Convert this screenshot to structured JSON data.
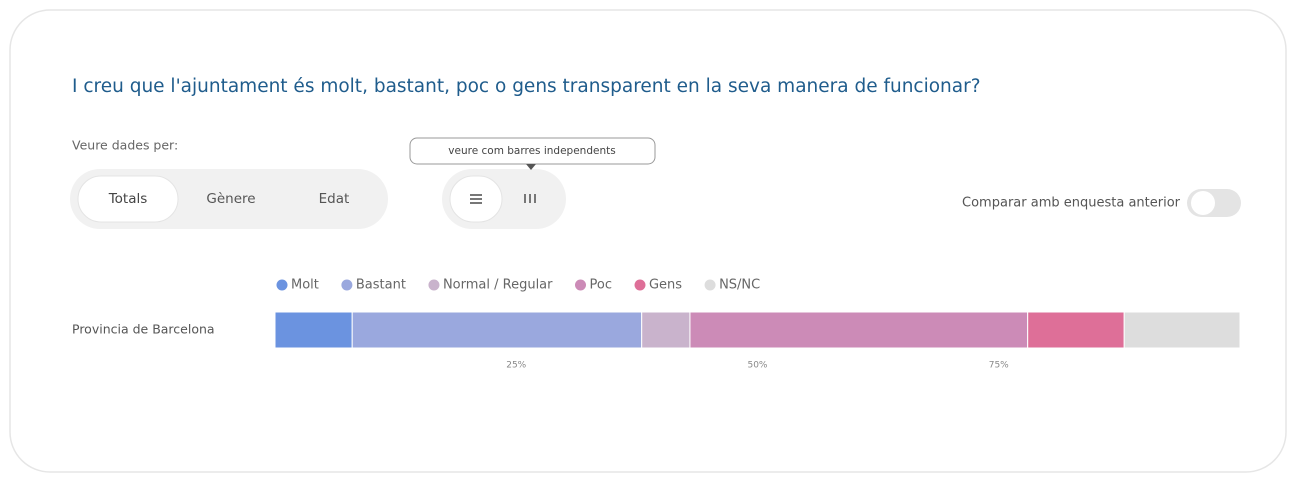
{
  "controls": {
    "view_by_label": "Veure dades per:",
    "tabs": [
      "Totals",
      "Gènere",
      "Edat"
    ],
    "tooltip": "veure com barres independents",
    "compare_label": "Comparar amb enquesta anterior"
  },
  "chart_data": {
    "type": "bar",
    "orientation": "horizontal",
    "stacked": true,
    "title": "I creu que l'ajuntament és molt, bastant, poc o gens transparent en la seva manera de funcionar?",
    "categories": [
      "Provincia de Barcelona"
    ],
    "series": [
      {
        "name": "Molt",
        "color": "#6b93e0",
        "values": [
          8
        ]
      },
      {
        "name": "Bastant",
        "color": "#9aa8de",
        "values": [
          30
        ]
      },
      {
        "name": "Normal / Regular",
        "color": "#c9b3cc",
        "values": [
          5
        ]
      },
      {
        "name": "Poc",
        "color": "#cc8bb7",
        "values": [
          35
        ]
      },
      {
        "name": "Gens",
        "color": "#de6f98",
        "values": [
          10
        ]
      },
      {
        "name": "NS/NC",
        "color": "#dddddd",
        "values": [
          12
        ]
      }
    ],
    "xlim": [
      0,
      100
    ],
    "xticks": [
      {
        "value": 25,
        "label": "25%"
      },
      {
        "value": 50,
        "label": "50%"
      },
      {
        "value": 75,
        "label": "75%"
      }
    ],
    "legend": "top"
  }
}
